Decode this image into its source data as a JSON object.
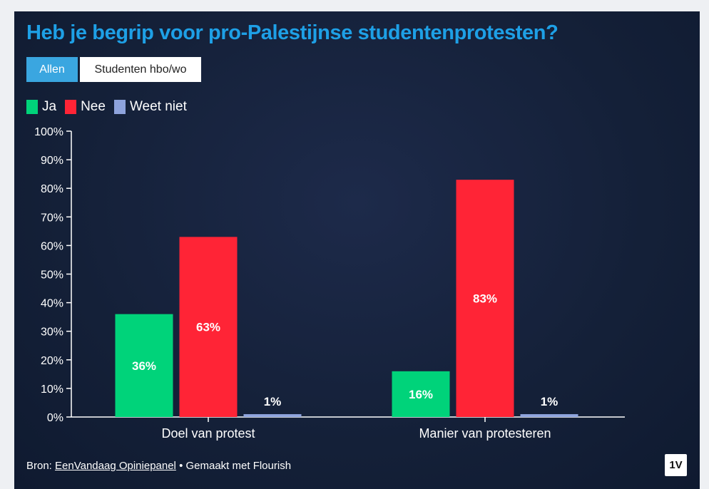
{
  "title": "Heb je begrip voor pro-Palestijnse studentenprotesten?",
  "tabs": [
    {
      "label": "Allen",
      "active": true
    },
    {
      "label": "Studenten hbo/wo",
      "active": false
    }
  ],
  "legend": [
    {
      "label": "Ja",
      "color": "#00d37a"
    },
    {
      "label": "Nee",
      "color": "#ff2436"
    },
    {
      "label": "Weet niet",
      "color": "#8ea3dc"
    }
  ],
  "footer": {
    "prefix": "Bron: ",
    "link": "EenVandaag Opiniepanel",
    "suffix": " • Gemaakt met Flourish"
  },
  "logo": "1V",
  "chart_data": {
    "type": "bar",
    "categories": [
      "Doel van protest",
      "Manier van protesteren"
    ],
    "series": [
      {
        "name": "Ja",
        "values": [
          36,
          16
        ],
        "labels": [
          "36%",
          "16%"
        ],
        "color": "#00d37a"
      },
      {
        "name": "Nee",
        "values": [
          63,
          83
        ],
        "labels": [
          "63%",
          "83%"
        ],
        "color": "#ff2436"
      },
      {
        "name": "Weet niet",
        "values": [
          1,
          1
        ],
        "labels": [
          "1%",
          "1%"
        ],
        "color": "#8ea3dc"
      }
    ],
    "ylim": [
      0,
      100
    ],
    "yticks": [
      "0%",
      "10%",
      "20%",
      "30%",
      "40%",
      "50%",
      "60%",
      "70%",
      "80%",
      "90%",
      "100%"
    ],
    "grid": false,
    "legend_position": "top-left"
  }
}
